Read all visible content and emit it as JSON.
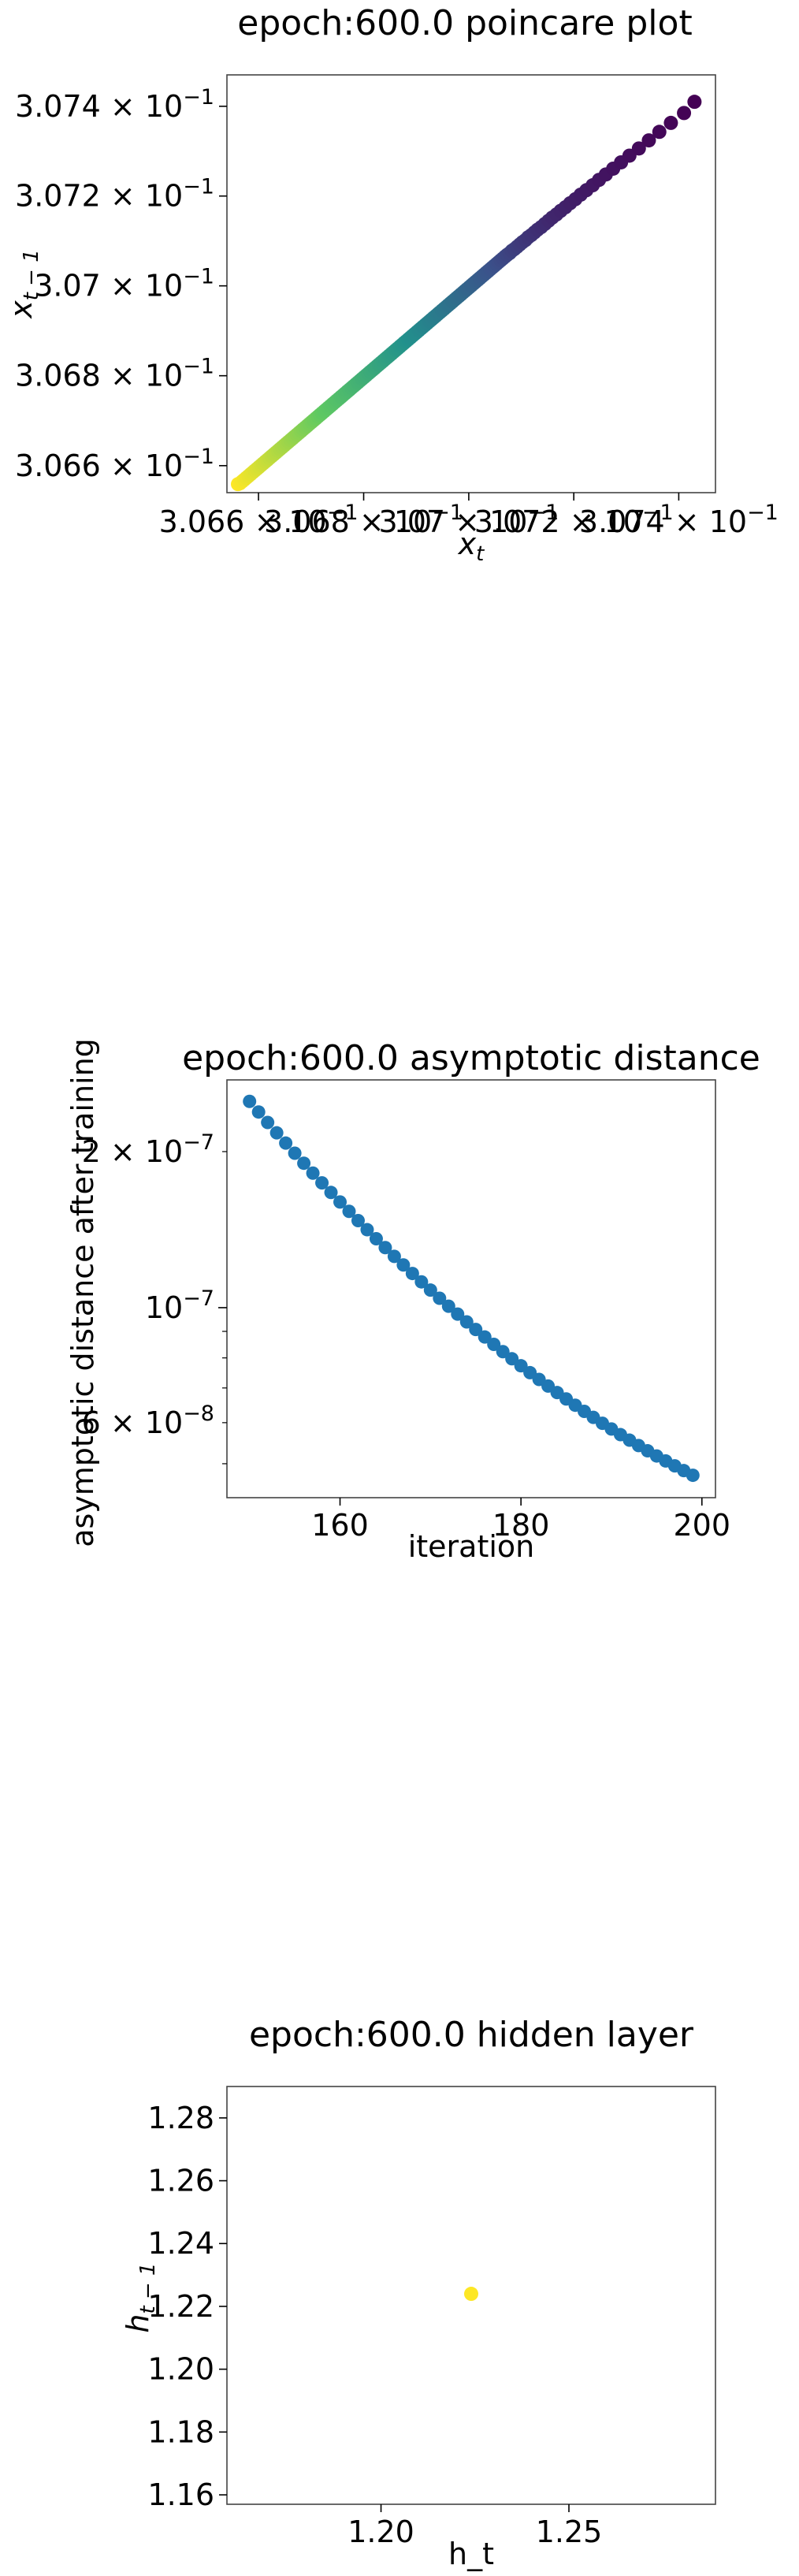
{
  "chart_data": [
    {
      "type": "scatter",
      "title": "epoch:600.0 poincare plot",
      "xlabel": "x_t",
      "ylabel": "x_{t-1}",
      "xscale": "log",
      "yscale": "log",
      "xlim": [
        0.30654,
        0.30747
      ],
      "ylim": [
        0.30654,
        0.30747
      ],
      "xticks": [
        0.3066,
        0.3068,
        0.307,
        0.3072,
        0.3074
      ],
      "xtick_mantissas": [
        "3.066",
        "3.068",
        "3.07",
        "3.072",
        "3.074"
      ],
      "yticks": [
        0.3066,
        0.3068,
        0.307,
        0.3072,
        0.3074
      ],
      "ytick_mantissas": [
        "3.066",
        "3.068",
        "3.07",
        "3.072",
        "3.074"
      ],
      "tick_base": "10",
      "tick_exponent": "−1",
      "colormap": [
        "#440154",
        "#3b528b",
        "#21918c",
        "#5ec962",
        "#fde725"
      ],
      "points": {
        "x": [
          0.30743,
          0.30741,
          0.307385,
          0.307363,
          0.307343,
          0.307324,
          0.307306,
          0.30729,
          0.307275,
          0.307261,
          0.307248,
          0.307236,
          0.307224,
          0.307213,
          0.307203,
          0.307193,
          0.307184,
          0.307175,
          0.307167,
          0.307159,
          0.307152,
          0.307145,
          0.307138,
          0.307131,
          0.307125,
          0.307119,
          0.307113,
          0.307108,
          0.307102,
          0.307097,
          0.307092,
          0.307087,
          0.307082,
          0.307078,
          0.307073,
          0.307069,
          0.307065,
          0.307061,
          0.307057,
          0.307053,
          0.307049,
          0.307045,
          0.307041,
          0.307037,
          0.307033,
          0.307029,
          0.307025,
          0.307021,
          0.307017,
          0.307013,
          0.307009,
          0.307005,
          0.307001,
          0.306997,
          0.306993,
          0.306989,
          0.306985,
          0.306981,
          0.306977,
          0.306973,
          0.306969,
          0.306965,
          0.306961,
          0.306957,
          0.306953,
          0.306949,
          0.306945,
          0.306941,
          0.306937,
          0.306933,
          0.306929,
          0.306925,
          0.306921,
          0.306917,
          0.306913,
          0.306909,
          0.306905,
          0.306901,
          0.306897,
          0.306893,
          0.306889,
          0.306885,
          0.306881,
          0.306877,
          0.306873,
          0.306869,
          0.306865,
          0.306861,
          0.306857,
          0.306853,
          0.306849,
          0.306845,
          0.306841,
          0.306837,
          0.306833,
          0.306829,
          0.306825,
          0.306821,
          0.306817,
          0.306813,
          0.306809,
          0.306805,
          0.306801,
          0.306797,
          0.306793,
          0.306789,
          0.306785,
          0.306781,
          0.306777,
          0.306773,
          0.306769,
          0.306765,
          0.306761,
          0.306757,
          0.306753,
          0.306749,
          0.306745,
          0.306741,
          0.306737,
          0.306733,
          0.306729,
          0.306725,
          0.306721,
          0.306717,
          0.306713,
          0.306709,
          0.306705,
          0.306701,
          0.306697,
          0.306693,
          0.306689,
          0.306685,
          0.306681,
          0.306677,
          0.306673,
          0.306669,
          0.306665,
          0.306661,
          0.306657,
          0.306653,
          0.306649,
          0.306645,
          0.306641,
          0.306637,
          0.306633,
          0.306629,
          0.306625,
          0.306621,
          0.306617,
          0.306613,
          0.306609,
          0.306605,
          0.306601,
          0.306597,
          0.306593,
          0.306589,
          0.306585,
          0.306581,
          0.306577,
          0.306573,
          0.306569,
          0.306565,
          0.306561
        ],
        "y_offset_steps": 1
      }
    },
    {
      "type": "scatter",
      "title": "epoch:600.0 asymptotic distance",
      "xlabel": "iteration",
      "ylabel": "asymptotic distance after training",
      "yscale": "log",
      "xlim": [
        147.5,
        201.5
      ],
      "ylim": [
        4.3e-08,
        2.75e-07
      ],
      "xticks": [
        160,
        180,
        200
      ],
      "xtick_labels": [
        "160",
        "180",
        "200"
      ],
      "yticks_major": [
        1e-07
      ],
      "ytick_labels": [
        {
          "value": 2e-07,
          "mantissa": "2",
          "exponent": "−7"
        },
        {
          "value": 1e-07,
          "mantissa": "",
          "exponent": "−7"
        },
        {
          "value": 6e-08,
          "mantissa": "6",
          "exponent": "−8"
        }
      ],
      "tick_base": "10",
      "color": "#1f77b4",
      "x_start": 150,
      "x_end": 199,
      "y_start": 2.5e-07,
      "y_end": 4.75e-08
    },
    {
      "type": "scatter",
      "title": "epoch:600.0 hidden layer",
      "xlabel": "h_t",
      "ylabel": "h_{t-1}",
      "xlim": [
        1.159,
        1.289
      ],
      "ylim": [
        1.157,
        1.29
      ],
      "xticks": [
        1.2,
        1.25
      ],
      "xtick_labels": [
        "1.20",
        "1.25"
      ],
      "yticks": [
        1.16,
        1.18,
        1.2,
        1.22,
        1.24,
        1.26,
        1.28
      ],
      "ytick_labels": [
        "1.16",
        "1.18",
        "1.20",
        "1.22",
        "1.24",
        "1.26",
        "1.28"
      ],
      "color": "#fde725",
      "points": {
        "x": [
          1.224
        ],
        "y": [
          1.224
        ]
      }
    }
  ]
}
